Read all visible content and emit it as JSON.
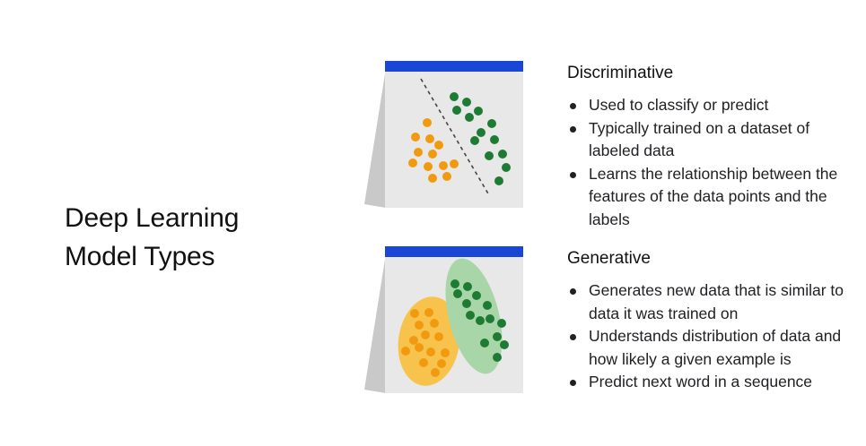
{
  "title": {
    "line1": "Deep Learning",
    "line2": "Model Types"
  },
  "colors": {
    "header_bar": "#1a46d6",
    "panel_bg": "#e8e8e8",
    "orange": "#f29a0f",
    "green": "#1e7b34",
    "orange_ellipse": "#f7c34c",
    "green_ellipse": "#a8d6a8"
  },
  "discriminative": {
    "heading": "Discriminative",
    "bullets": [
      "Used to classify or predict",
      "Typically trained on a dataset of labeled data",
      "Learns the relationship between the features of the data points and the labels"
    ]
  },
  "generative": {
    "heading": "Generative",
    "bullets": [
      "Generates new data that is similar to data it was trained on",
      "Understands distribution of data and how likely a given example is",
      "Predict next word in a sequence"
    ]
  }
}
